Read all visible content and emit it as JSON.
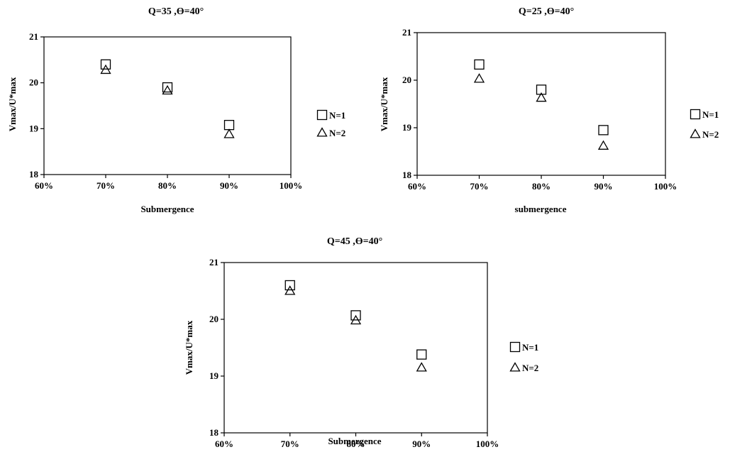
{
  "chart_data": [
    {
      "type": "scatter",
      "title": "Q=35 ,Ө=40°",
      "xlabel": "Submergence",
      "ylabel": "Vmax/U*max",
      "xlim": [
        0.6,
        1.0
      ],
      "ylim": [
        18,
        21
      ],
      "x_ticks": [
        "60%",
        "70%",
        "80%",
        "90%",
        "100%"
      ],
      "y_ticks": [
        "18",
        "19",
        "20",
        "21"
      ],
      "legend_position": "right",
      "grid": false,
      "series": [
        {
          "name": "N=1",
          "marker": "square",
          "x": [
            0.7,
            0.8,
            0.9
          ],
          "y": [
            20.4,
            19.9,
            19.08
          ]
        },
        {
          "name": "N=2",
          "marker": "triangle",
          "x": [
            0.7,
            0.8,
            0.9
          ],
          "y": [
            20.28,
            19.83,
            18.88
          ]
        }
      ]
    },
    {
      "type": "scatter",
      "title": "Q=25 ,Ө=40°",
      "xlabel": "submergence",
      "ylabel": "Vmax/U*max",
      "xlim": [
        0.6,
        1.0
      ],
      "ylim": [
        18,
        21
      ],
      "x_ticks": [
        "60%",
        "70%",
        "80%",
        "90%",
        "100%"
      ],
      "y_ticks": [
        "18",
        "19",
        "20",
        "21"
      ],
      "legend_position": "right",
      "grid": false,
      "series": [
        {
          "name": "N=1",
          "marker": "square",
          "x": [
            0.7,
            0.8,
            0.9
          ],
          "y": [
            20.33,
            19.8,
            18.95
          ]
        },
        {
          "name": "N=2",
          "marker": "triangle",
          "x": [
            0.7,
            0.8,
            0.9
          ],
          "y": [
            20.03,
            19.63,
            18.62
          ]
        }
      ]
    },
    {
      "type": "scatter",
      "title": "Q=45 ,Ө=40°",
      "xlabel": "Submergence",
      "ylabel": "Vmax/U*max",
      "xlim": [
        0.6,
        1.0
      ],
      "ylim": [
        18,
        21
      ],
      "x_ticks": [
        "60%",
        "70%",
        "80%",
        "90%",
        "100%"
      ],
      "y_ticks": [
        "18",
        "19",
        "20",
        "21"
      ],
      "legend_position": "right",
      "grid": false,
      "series": [
        {
          "name": "N=1",
          "marker": "square",
          "x": [
            0.7,
            0.8,
            0.9
          ],
          "y": [
            20.6,
            20.07,
            19.38
          ]
        },
        {
          "name": "N=2",
          "marker": "triangle",
          "x": [
            0.7,
            0.8,
            0.9
          ],
          "y": [
            20.5,
            19.98,
            19.15
          ]
        }
      ]
    }
  ]
}
